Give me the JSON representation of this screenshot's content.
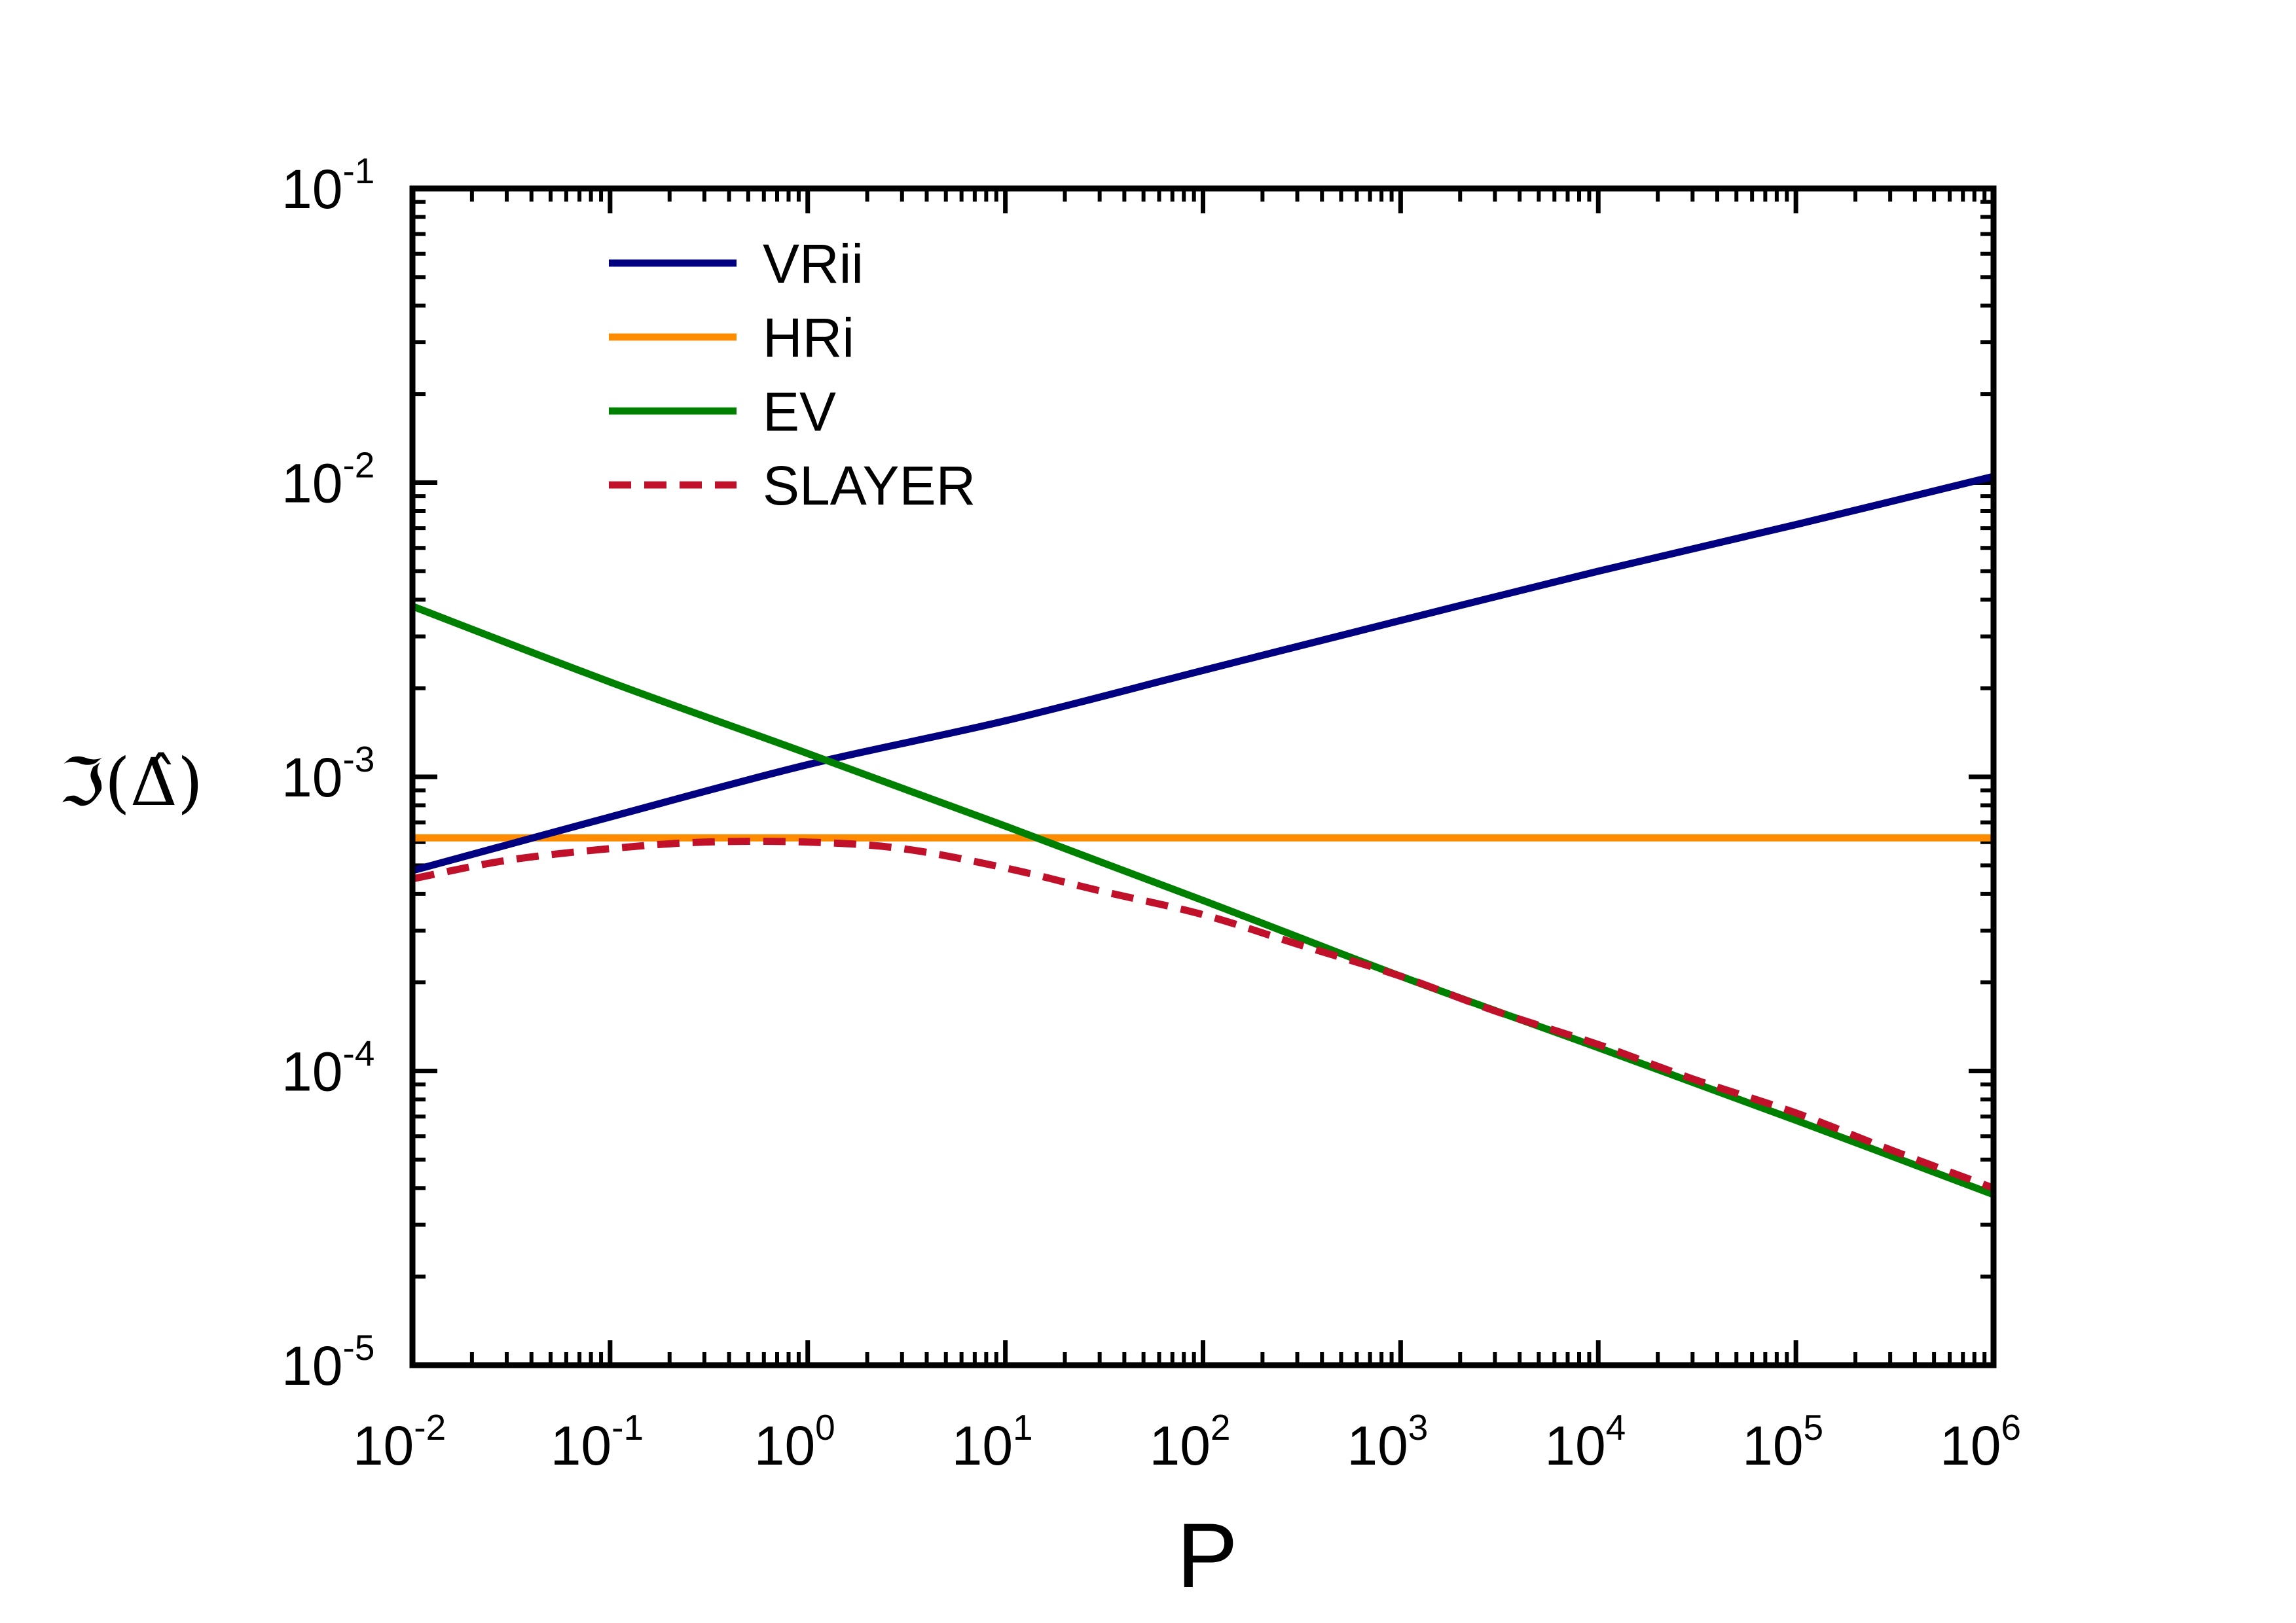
{
  "chart_data": {
    "type": "line",
    "xlabel": "P",
    "ylabel": "ℑ(Δ̂)",
    "xscale": "log",
    "yscale": "log",
    "xlim": [
      0.01,
      1000000
    ],
    "ylim": [
      1e-05,
      0.1
    ],
    "x_ticks": [
      {
        "base": "10",
        "exp": "-2"
      },
      {
        "base": "10",
        "exp": "-1"
      },
      {
        "base": "10",
        "exp": "0"
      },
      {
        "base": "10",
        "exp": "1"
      },
      {
        "base": "10",
        "exp": "2"
      },
      {
        "base": "10",
        "exp": "3"
      },
      {
        "base": "10",
        "exp": "4"
      },
      {
        "base": "10",
        "exp": "5"
      },
      {
        "base": "10",
        "exp": "6"
      }
    ],
    "y_ticks": [
      {
        "base": "10",
        "exp": "-5"
      },
      {
        "base": "10",
        "exp": "-4"
      },
      {
        "base": "10",
        "exp": "-3"
      },
      {
        "base": "10",
        "exp": "-2"
      },
      {
        "base": "10",
        "exp": "-1"
      }
    ],
    "grid": false,
    "legend_position": "top-left",
    "series": [
      {
        "name": "VRii",
        "color": "#000080",
        "dash": "solid",
        "x": [
          0.01,
          0.1,
          1,
          10,
          100,
          1000,
          10000,
          100000,
          1000000
        ],
        "y": [
          0.00048,
          0.00073,
          0.0011,
          0.00155,
          0.0023,
          0.0034,
          0.005,
          0.0072,
          0.0105
        ]
      },
      {
        "name": "HRi",
        "color": "#FF8C00",
        "dash": "solid",
        "x": [
          0.01,
          1000000
        ],
        "y": [
          0.00062,
          0.00062
        ]
      },
      {
        "name": "EV",
        "color": "#008000",
        "dash": "solid",
        "x": [
          0.01,
          0.1,
          1,
          10,
          100,
          1000,
          10000,
          100000,
          1000000
        ],
        "y": [
          0.0038,
          0.0021,
          0.0012,
          0.00068,
          0.00038,
          0.00021,
          0.00012,
          6.8e-05,
          3.8e-05
        ]
      },
      {
        "name": "SLAYER",
        "color": "#C0102A",
        "dash": "dashed",
        "x": [
          0.01,
          0.03,
          0.1,
          0.3,
          1,
          3,
          10,
          30,
          100,
          300,
          1000,
          3000,
          10000,
          30000,
          100000,
          300000,
          1000000
        ],
        "y": [
          0.00045,
          0.00052,
          0.00057,
          0.0006,
          0.0006,
          0.00057,
          0.00049,
          0.00041,
          0.00034,
          0.00027,
          0.00021,
          0.00016,
          0.000123,
          9.4e-05,
          7.2e-05,
          5.4e-05,
          4e-05
        ]
      }
    ]
  }
}
